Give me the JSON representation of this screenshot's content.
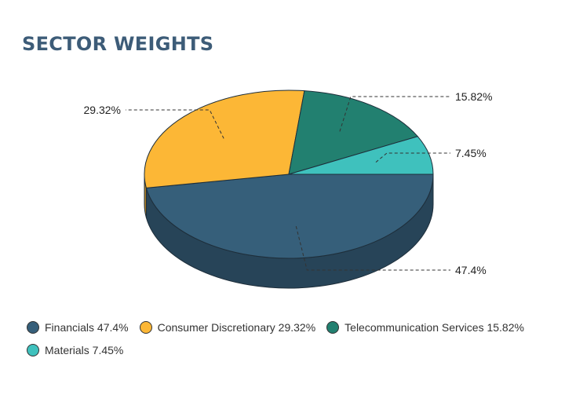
{
  "title": "SECTOR WEIGHTS",
  "chart_data": {
    "type": "pie",
    "style": "3d",
    "categories": [
      "Financials",
      "Consumer Discretionary",
      "Telecommunication Services",
      "Materials"
    ],
    "values": [
      47.4,
      29.32,
      15.82,
      7.45
    ],
    "data_labels": [
      "47.4%",
      "29.32%",
      "15.82%",
      "7.45%"
    ],
    "colors": [
      "#365f7a",
      "#fcb736",
      "#228070",
      "#3fc1bd"
    ],
    "legend": {
      "position": "bottom",
      "entries": [
        "Financials 47.4%",
        "Consumer Discretionary 29.32%",
        "Telecommunication Services 15.82%",
        "Materials 7.45%"
      ]
    }
  }
}
